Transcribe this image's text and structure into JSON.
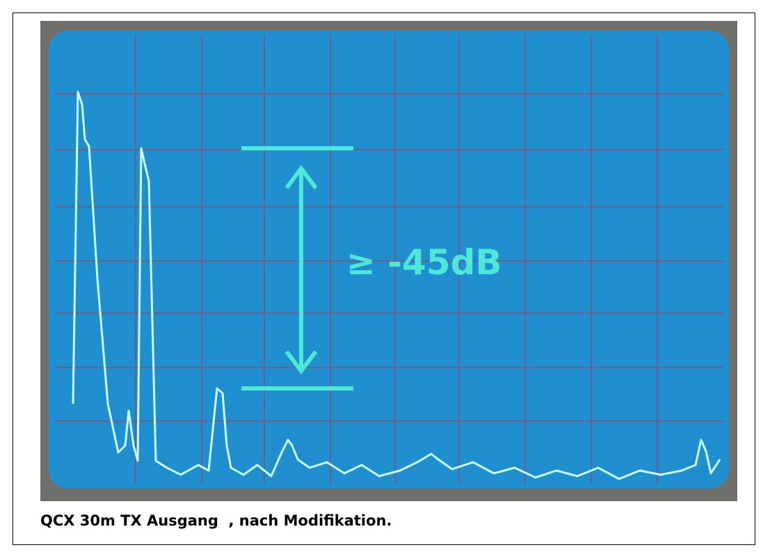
{
  "annotation": "≥ -45dB",
  "caption": "QCX 30m TX Ausgang  , nach Modifikation."
}
